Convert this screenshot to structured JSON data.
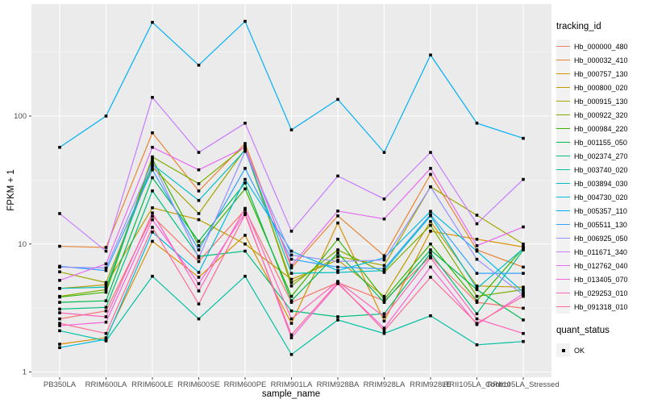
{
  "figure": {
    "y_axis_title": "FPKM + 1",
    "x_axis_title": "sample_name"
  },
  "legend": {
    "tracking_title": "tracking_id",
    "quant_title": "quant_status",
    "quant_ok_label": "OK"
  },
  "colors": {
    "background": "#FFFFFF",
    "panel": "#EBEBEB",
    "gridline": "#FFFFFF",
    "point": "#000000",
    "axis_text": "#4D4D4D",
    "tick_mark": "#333333",
    "legend_key_bg": "#F2F2F2"
  },
  "chart_data": {
    "type": "line",
    "yscale": "log10",
    "xlabel": "sample_name",
    "ylabel": "FPKM + 1",
    "ylim": [
      1,
      700
    ],
    "y_ticks": [
      1,
      10,
      100
    ],
    "y_minor_ticks": [
      3.162,
      31.62,
      316.2
    ],
    "grid": true,
    "legend_position": "right",
    "point_shape": "filled-black-square",
    "categories": [
      "PB350LA",
      "RRIM600LA",
      "RRIM600LE",
      "RRIM600SE",
      "RRIM600PE",
      "RRIM901LA",
      "RRIM928BA",
      "RRIM928LA",
      "RRIM928LE",
      "RRII105LA_Control",
      "RRII105LA_Stressed"
    ],
    "series": [
      {
        "name": "Hb_000000_480",
        "color": "#F8766D",
        "values": [
          2.6,
          3.0,
          16.5,
          7.3,
          18.5,
          3.5,
          5.0,
          3.6,
          8.0,
          3.5,
          3.15
        ]
      },
      {
        "name": "Hb_000032_410",
        "color": "#EA8331",
        "values": [
          9.6,
          9.4,
          74,
          26,
          61,
          6.5,
          16.6,
          8.1,
          35,
          9.0,
          6.6
        ]
      },
      {
        "name": "Hb_000757_130",
        "color": "#D89000",
        "values": [
          1.65,
          1.85,
          10.5,
          5.5,
          11.7,
          2.4,
          14.6,
          2.5,
          12.6,
          10.9,
          9.5
        ]
      },
      {
        "name": "Hb_000800_020",
        "color": "#C09B00",
        "values": [
          4.5,
          4.8,
          19.2,
          15.5,
          10,
          5.3,
          7.5,
          3.9,
          15,
          4.7,
          4.6
        ]
      },
      {
        "name": "Hb_000915_130",
        "color": "#A3A500",
        "values": [
          6.06,
          5.0,
          40,
          17.3,
          55,
          5.0,
          8.0,
          6.8,
          28,
          16.8,
          10
        ]
      },
      {
        "name": "Hb_000922_320",
        "color": "#7CAE00",
        "values": [
          3.9,
          4.4,
          48,
          29.6,
          58,
          4.7,
          9.0,
          6.0,
          14,
          3.9,
          4.4
        ]
      },
      {
        "name": "Hb_000984_220",
        "color": "#39B600",
        "values": [
          3.85,
          4.2,
          46,
          9.7,
          27,
          3.9,
          10.9,
          3.7,
          10,
          3.6,
          9.3
        ]
      },
      {
        "name": "Hb_001155_050",
        "color": "#00BB4E",
        "values": [
          3.5,
          3.6,
          33,
          10.5,
          30,
          3.6,
          8.5,
          3.5,
          9.0,
          4.4,
          2.55
        ]
      },
      {
        "name": "Hb_002374_270",
        "color": "#00BF7D",
        "values": [
          3.1,
          3.2,
          26,
          8.0,
          8.8,
          3.0,
          2.7,
          2.85,
          8.5,
          2.85,
          9.0
        ]
      },
      {
        "name": "Hb_003740_020",
        "color": "#00C1A3",
        "values": [
          2.1,
          1.75,
          5.6,
          2.6,
          5.6,
          1.37,
          2.55,
          2.0,
          2.75,
          1.63,
          1.73
        ]
      },
      {
        "name": "Hb_003894_030",
        "color": "#00BFC4",
        "values": [
          4.5,
          4.6,
          42,
          21.9,
          54,
          5.9,
          6.0,
          6.2,
          16.6,
          4.5,
          9.2
        ]
      },
      {
        "name": "Hb_004730_020",
        "color": "#00BAE0",
        "values": [
          1.55,
          1.8,
          12.4,
          6.0,
          32,
          8.8,
          6.2,
          7.8,
          18,
          8.8,
          4.2
        ]
      },
      {
        "name": "Hb_005357_110",
        "color": "#00B0F6",
        "values": [
          57,
          100,
          540,
          250,
          550,
          78,
          135,
          52,
          300,
          88,
          67
        ]
      },
      {
        "name": "Hb_005511_130",
        "color": "#35A2FF",
        "values": [
          6.7,
          6.2,
          38,
          9.0,
          39,
          7.6,
          6.6,
          6.4,
          17,
          5.9,
          5.9
        ]
      },
      {
        "name": "Hb_006925_050",
        "color": "#9590FF",
        "values": [
          6.6,
          6.5,
          44,
          7.8,
          53,
          8.2,
          7.3,
          7.5,
          28,
          7.6,
          4.0
        ]
      },
      {
        "name": "Hb_011671_340",
        "color": "#C77CFF",
        "values": [
          17.3,
          8.8,
          140,
          52,
          88,
          12.6,
          34,
          22.5,
          52,
          14.4,
          32
        ]
      },
      {
        "name": "Hb_012762_040",
        "color": "#E76BF3",
        "values": [
          5.2,
          7.0,
          57,
          38,
          57,
          6.8,
          18.1,
          15.7,
          39,
          9.7,
          13.6
        ]
      },
      {
        "name": "Hb_013405_070",
        "color": "#FA62DB",
        "values": [
          2.3,
          2.45,
          15.5,
          4.9,
          17.5,
          1.85,
          4.9,
          2.2,
          6.6,
          2.35,
          4.1
        ]
      },
      {
        "name": "Hb_029253_010",
        "color": "#FF62BC",
        "values": [
          2.9,
          2.7,
          17.5,
          4.3,
          19,
          2.6,
          5.1,
          2.7,
          7.8,
          2.6,
          2.0
        ]
      },
      {
        "name": "Hb_091318_010",
        "color": "#FF6A98",
        "values": [
          2.4,
          2.0,
          13.5,
          3.4,
          17,
          1.95,
          5.0,
          2.1,
          5.5,
          2.4,
          3.9
        ]
      }
    ]
  }
}
